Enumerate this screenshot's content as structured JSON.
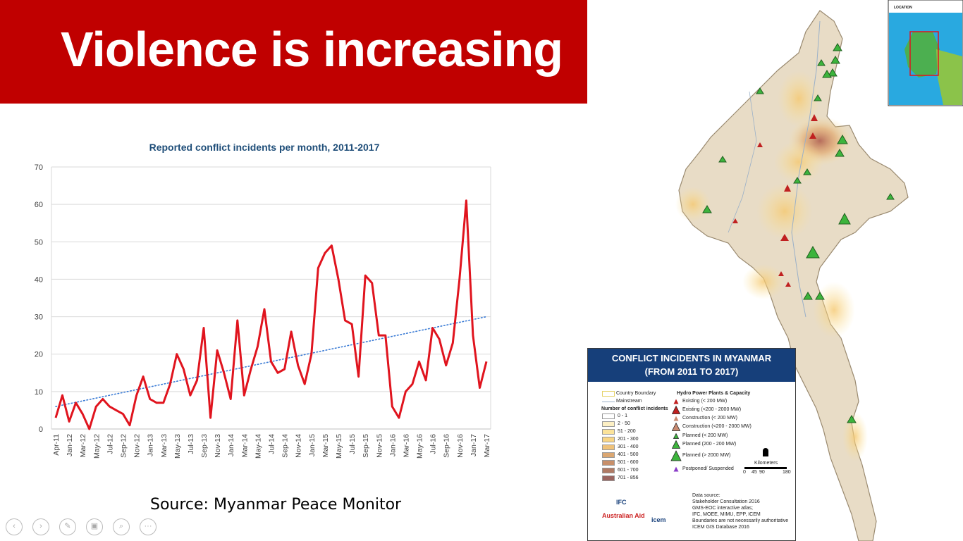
{
  "slide": {
    "title": "Violence is increasing",
    "source": "Source: Myanmar Peace Monitor"
  },
  "chart_data": {
    "type": "line",
    "title": "Reported conflict incidents per month, 2011-2017",
    "xlabel": "",
    "ylabel": "",
    "ylim": [
      0,
      70
    ],
    "yticks": [
      0,
      10,
      20,
      30,
      40,
      50,
      60,
      70
    ],
    "grid": true,
    "legend": "none",
    "x_tick_labels": [
      "Apr-11",
      "Jan-12",
      "Mar-12",
      "May-12",
      "Jul-12",
      "Sep-12",
      "Nov-12",
      "Jan-13",
      "Mar-13",
      "May-13",
      "Jul-13",
      "Sep-13",
      "Nov-13",
      "Jan-14",
      "Mar-14",
      "May-14",
      "Jul-14",
      "Sep-14",
      "Nov-14",
      "Jan-15",
      "Mar-15",
      "May-15",
      "Jul-15",
      "Sep-15",
      "Nov-15",
      "Jan-16",
      "Mar-16",
      "May-16",
      "Jul-16",
      "Sep-16",
      "Nov-16",
      "Jan-17",
      "Mar-17"
    ],
    "series": [
      {
        "type": "line",
        "color": "#e0141e",
        "values": [
          3,
          9,
          2,
          7,
          4,
          0,
          6,
          8,
          6,
          5,
          4,
          1,
          9,
          14,
          8,
          7,
          7,
          12,
          20,
          16,
          9,
          13,
          27,
          3,
          21,
          15,
          8,
          29,
          9,
          16,
          22,
          32,
          18,
          15,
          16,
          26,
          17,
          12,
          20,
          43,
          47,
          49,
          40,
          29,
          28,
          14,
          41,
          39,
          25,
          25,
          6,
          3,
          10,
          12,
          18,
          13,
          27,
          24,
          17,
          23,
          40,
          61,
          25,
          11,
          18
        ]
      },
      {
        "type": "trendline",
        "color": "#3a7bd5",
        "style": "dotted",
        "values": [
          6,
          30
        ]
      }
    ]
  },
  "map": {
    "inset_label": "LOCATION",
    "legend": {
      "title_line1": "CONFLICT INCIDENTS IN MYANMAR",
      "title_line2": "(FROM 2011 TO 2017)",
      "country_boundary": "Country Boundary",
      "mainstream": "Mainstream",
      "incidents_header": "Number of conflict incidents",
      "bins": [
        {
          "label": "0 - 1",
          "color": "#ffffff"
        },
        {
          "label": "2 - 50",
          "color": "#fdf0c4"
        },
        {
          "label": "51 - 200",
          "color": "#fbe39a"
        },
        {
          "label": "201 - 300",
          "color": "#f8d584"
        },
        {
          "label": "301 - 400",
          "color": "#efc27a"
        },
        {
          "label": "401 - 500",
          "color": "#dba772"
        },
        {
          "label": "501 - 600",
          "color": "#c78f6a"
        },
        {
          "label": "601 - 700",
          "color": "#b07a64"
        },
        {
          "label": "701 - 856",
          "color": "#9b6560"
        }
      ],
      "hydro_header": "Hydro Power Plants & Capacity",
      "hydro_items": [
        {
          "label": "Existing (< 200 MW)",
          "color": "#c02020"
        },
        {
          "label": "Existing (<200 - 2000 MW)",
          "color": "#c02020"
        },
        {
          "label": "Construction (< 200 MW)",
          "color": "#c98a70"
        },
        {
          "label": "Construction (<200 - 2000 MW)",
          "color": "#c98a70"
        },
        {
          "label": "Planned (< 200 MW)",
          "color": "#3cb43c"
        },
        {
          "label": "Planned (200 - 200 MW)",
          "color": "#3cb43c"
        },
        {
          "label": "Planned (> 2000 MW)",
          "color": "#3cb43c"
        },
        {
          "label": "Postponed/ Suspended",
          "color": "#8a3cc8"
        }
      ],
      "scale_title": "Kilometers",
      "scale_ticks": [
        "0",
        "45",
        "90",
        "180"
      ],
      "data_source": [
        "Data source:",
        "Stakeholder Consultation 2016",
        "GMS-EOC interactive atlas;",
        "IFC, MOEE, MIMU, EPP, ICEM",
        "Boundaries are not necessarily authoritative",
        "ICEM GIS Database 2016"
      ],
      "logos": [
        "IFC",
        "Australian Aid",
        "icem"
      ]
    }
  },
  "nav": {
    "icons": [
      "previous-icon",
      "next-icon",
      "pen-icon",
      "slides-icon",
      "zoom-icon",
      "more-icon"
    ],
    "more_label": "···"
  }
}
